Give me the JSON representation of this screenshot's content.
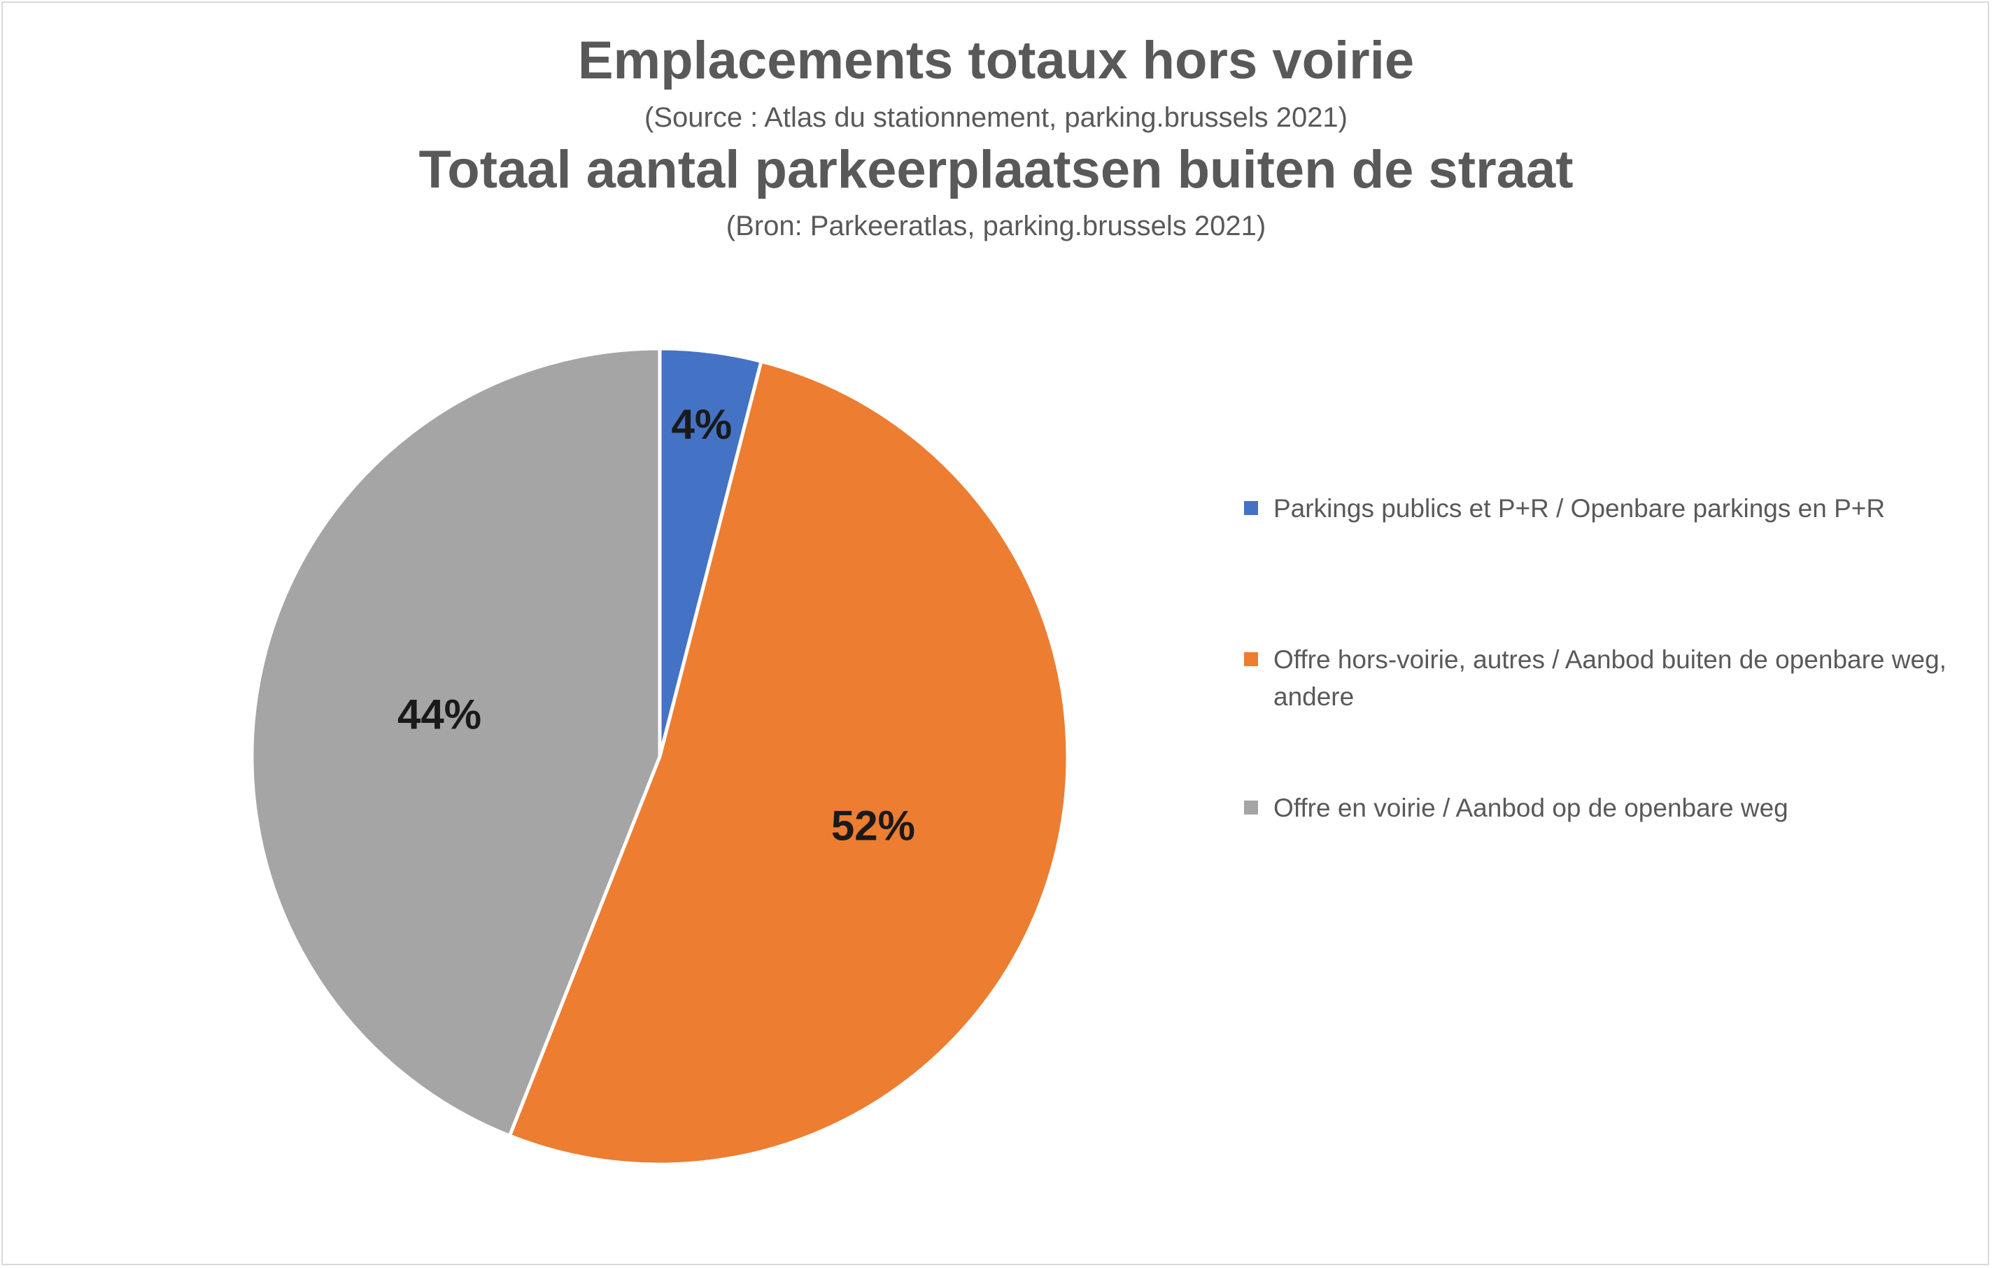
{
  "chart_data": {
    "type": "pie",
    "title": "Emplacements totaux hors voirie",
    "subtitle": "(Source : Atlas du stationnement, parking.brussels 2021)",
    "title_2": "Totaal aantal parkeerplaatsen buiten de straat",
    "subtitle_2": "(Bron: Parkeeratlas, parking.brussels 2021)",
    "legend_position": "right",
    "slices": [
      {
        "name": "Parkings publics et P+R / Openbare parkings en P+R",
        "value": 4,
        "label": "4%",
        "color": "#4472c4"
      },
      {
        "name": "Offre hors-voirie, autres / Aanbod buiten de openbare weg, andere",
        "value": 52,
        "label": "52%",
        "color": "#ed7d31"
      },
      {
        "name": "Offre en voirie / Aanbod op de openbare weg",
        "value": 44,
        "label": "44%",
        "color": "#a5a5a5"
      }
    ]
  }
}
